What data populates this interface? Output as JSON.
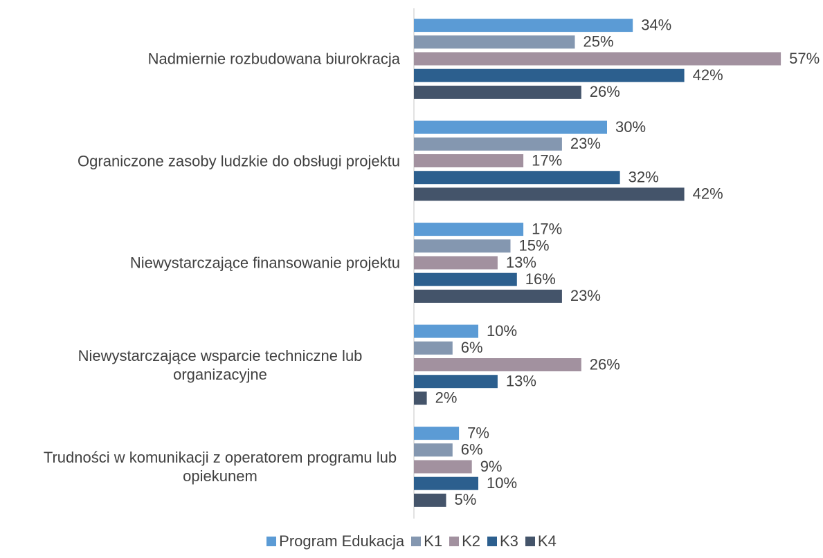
{
  "chart_data": {
    "type": "hbar",
    "categories": [
      "Nadmiernie rozbudowana biurokracja",
      "Ograniczone zasoby ludzkie do obsługi projektu",
      "Niewystarczające finansowanie projektu",
      "Niewystarczające wsparcie techniczne lub organizacyjne",
      "Trudności w komunikacji z operatorem programu lub opiekunem"
    ],
    "series": [
      {
        "name": "Program Edukacja",
        "color": "#5b9bd5",
        "values": [
          34,
          30,
          17,
          10,
          7
        ],
        "value_labels": [
          "34%",
          "30%",
          "17%",
          "10%",
          "7%"
        ]
      },
      {
        "name": "K1",
        "color": "#8497b0",
        "values": [
          25,
          23,
          15,
          6,
          6
        ],
        "value_labels": [
          "25%",
          "23%",
          "15%",
          "6%",
          "6%"
        ]
      },
      {
        "name": "K2",
        "color": "#a2919f",
        "values": [
          57,
          17,
          13,
          26,
          9
        ],
        "value_labels": [
          "57%",
          "17%",
          "13%",
          "26%",
          "9%"
        ]
      },
      {
        "name": "K3",
        "color": "#2c5f8e",
        "values": [
          42,
          32,
          16,
          13,
          10
        ],
        "value_labels": [
          "42%",
          "32%",
          "16%",
          "13%",
          "10%"
        ]
      },
      {
        "name": "K4",
        "color": "#44546a",
        "values": [
          26,
          42,
          23,
          2,
          5
        ],
        "value_labels": [
          "26%",
          "42%",
          "23%",
          "2%",
          "5%"
        ]
      }
    ],
    "legend": "bottom"
  }
}
